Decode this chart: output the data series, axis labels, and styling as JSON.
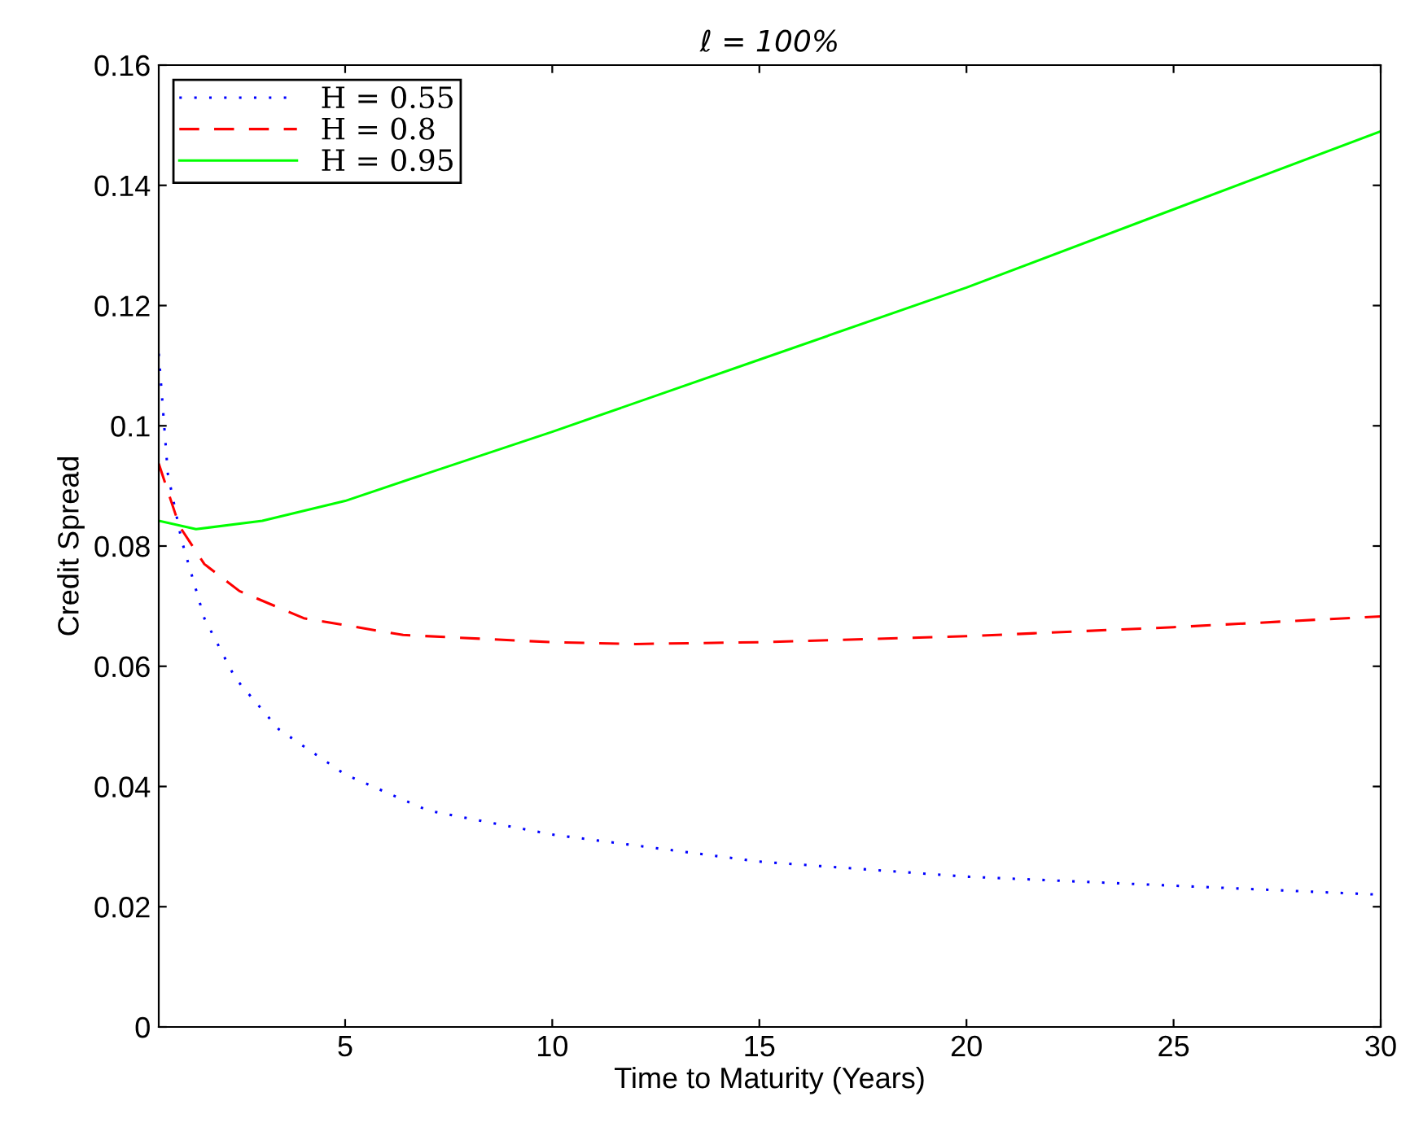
{
  "chart_data": {
    "type": "line",
    "title": "ℓ = 100%",
    "xlabel": "Time to Maturity (Years)",
    "ylabel": "Credit Spread",
    "xlim": [
      0.5,
      30
    ],
    "xticks": [
      5,
      10,
      15,
      20,
      25,
      30
    ],
    "ylim": [
      0,
      0.16
    ],
    "yticks": [
      0,
      0.02,
      0.04,
      0.06,
      0.08,
      0.1,
      0.12,
      0.14,
      0.16
    ],
    "grid": false,
    "legend": "top left",
    "series": [
      {
        "name": "H = 0.55",
        "color": "#0000ff",
        "line_style": "dotted",
        "x": [
          0.5,
          0.72,
          1.05,
          1.6,
          2.35,
          3.4,
          5,
          7,
          10,
          15,
          20,
          25,
          30
        ],
        "values": [
          0.112,
          0.092,
          0.081,
          0.068,
          0.058,
          0.0495,
          0.042,
          0.036,
          0.032,
          0.0275,
          0.025,
          0.0235,
          0.022
        ]
      },
      {
        "name": "H = 0.8",
        "color": "#ff0000",
        "line_style": "dashed",
        "x": [
          0.5,
          1.0,
          1.6,
          2.45,
          4,
          6.4,
          10,
          12,
          15,
          20,
          25,
          30
        ],
        "values": [
          0.0937,
          0.0833,
          0.077,
          0.0725,
          0.068,
          0.0652,
          0.064,
          0.0637,
          0.064,
          0.065,
          0.0665,
          0.0683
        ]
      },
      {
        "name": "H = 0.95",
        "color": "#00ff00",
        "line_style": "solid",
        "x": [
          0.5,
          1.4,
          3,
          5,
          6.9,
          10,
          15,
          20,
          25,
          30
        ],
        "values": [
          0.0842,
          0.0828,
          0.0842,
          0.0875,
          0.0919,
          0.099,
          0.111,
          0.123,
          0.136,
          0.149
        ]
      }
    ]
  }
}
